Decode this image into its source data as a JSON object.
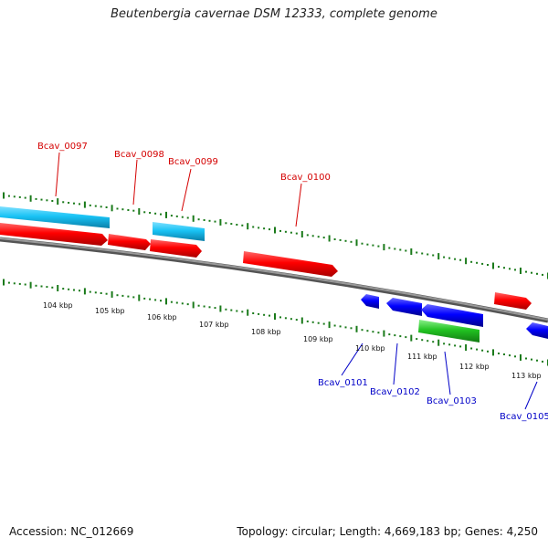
{
  "title": "Beutenbergia cavernae DSM 12333, complete genome",
  "accession": "Accession: NC_012669",
  "summary": "Topology: circular; Length: 4,669,183 bp; Genes: 4,250",
  "colors": {
    "forward_cds": "#ff0000",
    "forward_gene_light": "#19c3f5",
    "reverse_cds": "#0000ff",
    "reverse_green": "#22c322",
    "backbone": "#777777",
    "tick": "#1a7a1a",
    "forward_label": "#d40000",
    "reverse_label": "#0000c8"
  },
  "ticks": [
    "104 kbp",
    "105 kbp",
    "106 kbp",
    "107 kbp",
    "108 kbp",
    "109 kbp",
    "110 kbp",
    "111 kbp",
    "112 kbp",
    "113 kbp"
  ],
  "forward_labels": [
    "Bcav_0097",
    "Bcav_0098",
    "Bcav_0099",
    "Bcav_0100"
  ],
  "reverse_labels": [
    "Bcav_0101",
    "Bcav_0102",
    "Bcav_0103",
    "Bcav_0105"
  ]
}
